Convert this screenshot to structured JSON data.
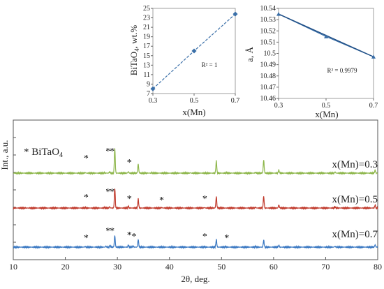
{
  "chart_data": [
    {
      "type": "line",
      "xlabel": "2θ, deg.",
      "ylabel": "Int., a.u.",
      "xlim": [
        10,
        80
      ],
      "xticks": [
        "10",
        "20",
        "30",
        "40",
        "50",
        "60",
        "70",
        "80"
      ],
      "legend_marker": "* BiTaO",
      "legend_marker_sub": "4",
      "series": [
        {
          "name": "x(Mn)=0.3",
          "color": "#8db64a",
          "baseline": 0.62,
          "peaks": [
            [
              23.8,
              0.03
            ],
            [
              27.5,
              0.03
            ],
            [
              28.5,
              0.08
            ],
            [
              29.5,
              1.6
            ],
            [
              32.1,
              0.1
            ],
            [
              34.0,
              0.6
            ],
            [
              36.6,
              0.03
            ],
            [
              44.0,
              0.02
            ],
            [
              49.0,
              0.8
            ],
            [
              51.0,
              0.03
            ],
            [
              56.5,
              0.05
            ],
            [
              58.1,
              0.85
            ],
            [
              61.0,
              0.2
            ],
            [
              71.8,
              0.08
            ],
            [
              79.5,
              0.2
            ]
          ],
          "stars": [
            [
              24,
              0.73
            ],
            [
              28.2,
              0.78
            ],
            [
              29.0,
              0.78
            ],
            [
              32.3,
              0.7
            ]
          ]
        },
        {
          "name": "x(Mn)=0.5",
          "color": "#c0392b",
          "baseline": 0.37,
          "peaks": [
            [
              23.8,
              0.03
            ],
            [
              27.5,
              0.03
            ],
            [
              28.5,
              0.08
            ],
            [
              29.5,
              1.3
            ],
            [
              32.1,
              0.12
            ],
            [
              34.0,
              0.6
            ],
            [
              38.5,
              0.03
            ],
            [
              46.7,
              0.03
            ],
            [
              49.0,
              0.75
            ],
            [
              56.5,
              0.05
            ],
            [
              58.1,
              0.75
            ],
            [
              61.0,
              0.2
            ],
            [
              71.8,
              0.08
            ],
            [
              79.5,
              0.2
            ]
          ],
          "stars": [
            [
              24,
              0.45
            ],
            [
              28.2,
              0.49
            ],
            [
              29.0,
              0.49
            ],
            [
              32.3,
              0.44
            ],
            [
              38.5,
              0.43
            ],
            [
              46.8,
              0.44
            ]
          ]
        },
        {
          "name": "x(Mn)=0.7",
          "color": "#3a78c2",
          "baseline": 0.09,
          "peaks": [
            [
              23.8,
              0.03
            ],
            [
              27.8,
              0.05
            ],
            [
              28.6,
              0.1
            ],
            [
              29.5,
              0.75
            ],
            [
              32.1,
              0.12
            ],
            [
              33.0,
              0.08
            ],
            [
              34.0,
              0.5
            ],
            [
              46.7,
              0.03
            ],
            [
              49.0,
              0.5
            ],
            [
              50.8,
              0.03
            ],
            [
              56.5,
              0.04
            ],
            [
              58.1,
              0.45
            ],
            [
              61.0,
              0.12
            ],
            [
              71.8,
              0.05
            ],
            [
              79.5,
              0.15
            ]
          ],
          "stars": [
            [
              24,
              0.16
            ],
            [
              28.2,
              0.21
            ],
            [
              29.0,
              0.21
            ],
            [
              32.3,
              0.18
            ],
            [
              33.2,
              0.17
            ],
            [
              46.8,
              0.17
            ],
            [
              51.0,
              0.16
            ]
          ]
        }
      ]
    },
    {
      "type": "line",
      "xlabel": "x(Mn)",
      "ylabel_main": "BiTaO",
      "ylabel_sub": "4",
      "ylabel_tail": ", wt.%",
      "x": [
        0.3,
        0.5,
        0.7
      ],
      "y": [
        8,
        16,
        23.8
      ],
      "xlim": [
        0.3,
        0.7
      ],
      "ylim": [
        7,
        25
      ],
      "yticks": [
        "7",
        "9",
        "11",
        "13",
        "15",
        "17",
        "19",
        "21",
        "23",
        "25"
      ],
      "xticks": [
        "0.3",
        "0.5",
        "0.7"
      ],
      "annotation": "R² = 1",
      "color": "#3a6fa8"
    },
    {
      "type": "line",
      "xlabel": "x(Mn)",
      "ylabel": "a, Å",
      "x": [
        0.3,
        0.5,
        0.7
      ],
      "y": [
        10.535,
        10.515,
        10.497
      ],
      "xlim": [
        0.3,
        0.7
      ],
      "ylim": [
        10.46,
        10.54
      ],
      "yticks": [
        "10.46",
        "10.47",
        "10.48",
        "10.49",
        "10.5",
        "10.51",
        "10.52",
        "10.53",
        "10.54"
      ],
      "xticks": [
        "0.3",
        "0.5",
        "0.7"
      ],
      "annotation": "R² = 0.9979",
      "color": "#3a6fa8"
    }
  ]
}
